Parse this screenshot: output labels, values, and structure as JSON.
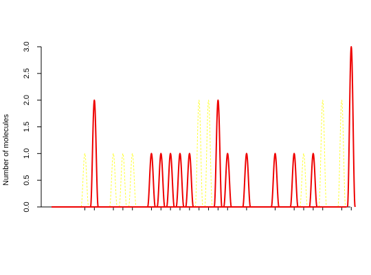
{
  "chart_data": {
    "type": "line",
    "title": "",
    "xlabel": "",
    "ylabel": "Number of molecules",
    "ylim": [
      0,
      3
    ],
    "xlim": [
      0,
      31
    ],
    "y_ticks": [
      0.0,
      0.5,
      1.0,
      1.5,
      2.0,
      2.5,
      3.0
    ],
    "y_tick_labels": [
      "0.0",
      "0.5",
      "1.0",
      "1.5",
      "2.0",
      "2.5",
      "3.0"
    ],
    "x_ticks": [
      3.5,
      4.5,
      6.5,
      7.5,
      8.5,
      10.5,
      11.5,
      12.5,
      13.5,
      14.5,
      15.5,
      16.5,
      17.5,
      18.5,
      20.5,
      23.5,
      25.5,
      26.5,
      27.5,
      28.5,
      30.5,
      31.5
    ],
    "grid": false,
    "legend": "none",
    "series": [
      {
        "color": "#ffff33",
        "style": "dashed",
        "peaks": [
          {
            "x": 3.5,
            "y": 1
          },
          {
            "x": 6.5,
            "y": 1
          },
          {
            "x": 7.5,
            "y": 1
          },
          {
            "x": 8.5,
            "y": 1
          },
          {
            "x": 15.5,
            "y": 2
          },
          {
            "x": 16.5,
            "y": 2
          },
          {
            "x": 18.5,
            "y": 1
          },
          {
            "x": 23.5,
            "y": 1
          },
          {
            "x": 26.5,
            "y": 1
          },
          {
            "x": 28.5,
            "y": 2
          },
          {
            "x": 30.5,
            "y": 2
          }
        ]
      },
      {
        "color": "#ee0000",
        "style": "solid",
        "peaks": [
          {
            "x": 4.5,
            "y": 2
          },
          {
            "x": 10.5,
            "y": 1
          },
          {
            "x": 11.5,
            "y": 1
          },
          {
            "x": 12.5,
            "y": 1
          },
          {
            "x": 13.5,
            "y": 1
          },
          {
            "x": 14.5,
            "y": 1
          },
          {
            "x": 17.5,
            "y": 2
          },
          {
            "x": 18.5,
            "y": 1
          },
          {
            "x": 20.5,
            "y": 1
          },
          {
            "x": 23.5,
            "y": 1
          },
          {
            "x": 25.5,
            "y": 1
          },
          {
            "x": 27.5,
            "y": 1
          },
          {
            "x": 31.5,
            "y": 3
          }
        ]
      }
    ]
  }
}
